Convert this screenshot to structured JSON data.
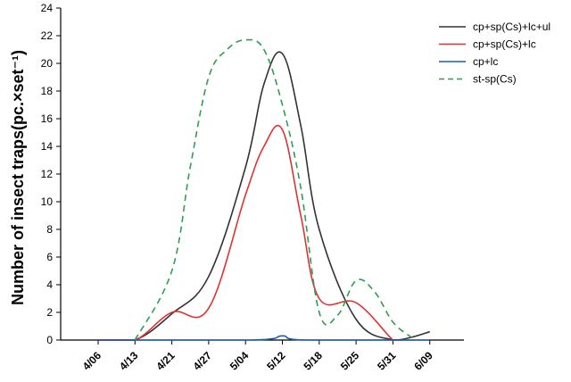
{
  "chart_data": {
    "type": "line",
    "xlabel": "",
    "ylabel": "Number of insect traps(pc.×set⁻¹)",
    "categories": [
      "4/06",
      "4/13",
      "4/21",
      "4/27",
      "5/04",
      "5/12",
      "5/18",
      "5/25",
      "5/31",
      "6/09"
    ],
    "ylim": [
      0,
      24
    ],
    "yticks": [
      0,
      2,
      4,
      6,
      8,
      10,
      12,
      14,
      16,
      18,
      20,
      22,
      24
    ],
    "legend_position": "top-right",
    "series": [
      {
        "name": "cp+sp(Cs)+lc+ul",
        "color": "#333333",
        "dash": "solid",
        "points": [
          [
            0,
            0
          ],
          [
            1,
            0
          ],
          [
            2,
            1.9
          ],
          [
            3,
            4.6
          ],
          [
            4,
            12.5
          ],
          [
            4.5,
            18.5
          ],
          [
            5,
            20.7
          ],
          [
            5.5,
            15.5
          ],
          [
            6,
            8.0
          ],
          [
            7,
            1.5
          ],
          [
            8,
            0
          ],
          [
            8.5,
            0.2
          ],
          [
            9,
            0.6
          ]
        ]
      },
      {
        "name": "cp+sp(Cs)+lc",
        "color": "#e03232",
        "dash": "solid",
        "points": [
          [
            0,
            0
          ],
          [
            1,
            0
          ],
          [
            2,
            2.0
          ],
          [
            3,
            2.3
          ],
          [
            4,
            10.5
          ],
          [
            4.5,
            14.0
          ],
          [
            5,
            15.2
          ],
          [
            5.5,
            9.0
          ],
          [
            6,
            3.0
          ],
          [
            7,
            2.7
          ],
          [
            8,
            0
          ],
          [
            8.2,
            0
          ]
        ]
      },
      {
        "name": "cp+lc",
        "color": "#1f5aa6",
        "dash": "solid",
        "points": [
          [
            0,
            0
          ],
          [
            4.2,
            0
          ],
          [
            5,
            0.3
          ],
          [
            5.6,
            0
          ],
          [
            9,
            0
          ]
        ]
      },
      {
        "name": "st-sp(Cs)",
        "color": "#2e9e4f",
        "dash": "dashed",
        "points": [
          [
            1,
            0
          ],
          [
            2,
            5.0
          ],
          [
            2.5,
            12.5
          ],
          [
            3,
            19.0
          ],
          [
            3.5,
            21.0
          ],
          [
            4,
            21.7
          ],
          [
            4.5,
            21.0
          ],
          [
            5,
            17.0
          ],
          [
            5.5,
            11.0
          ],
          [
            6,
            2.0
          ],
          [
            6.5,
            1.8
          ],
          [
            7,
            4.3
          ],
          [
            7.5,
            3.5
          ],
          [
            8,
            1.3
          ],
          [
            8.5,
            0.2
          ]
        ]
      }
    ]
  }
}
